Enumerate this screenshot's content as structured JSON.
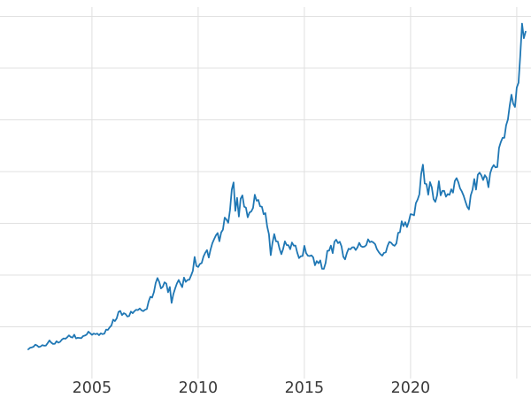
{
  "chart_data": {
    "type": "line",
    "title": "",
    "xlabel": "",
    "ylabel": "",
    "grid": true,
    "legend": "none",
    "background": "#ffffff",
    "grid_color": "#e0e0e0",
    "tick_label_color": "#3a3a3a",
    "xlim": [
      2000.67,
      2025.67
    ],
    "ylim": [
      0,
      3590
    ],
    "x_ticks": [
      {
        "value": 2005,
        "label": "2005"
      },
      {
        "value": 2010,
        "label": "2010"
      },
      {
        "value": 2015,
        "label": "2015"
      },
      {
        "value": 2020,
        "label": "2020"
      },
      {
        "value": 2025,
        "label": ""
      }
    ],
    "y_gridlines": [
      500,
      1000,
      1500,
      2000,
      2500,
      3000,
      3500
    ],
    "series": [
      {
        "name": "",
        "color": "#1f77b4",
        "line_width": 1.8,
        "start_year": 2002,
        "interval_months": 1,
        "values": [
          282,
          297,
          301,
          308,
          327,
          319,
          304,
          310,
          323,
          317,
          319,
          343,
          368,
          347,
          334,
          336,
          361,
          346,
          355,
          376,
          388,
          385,
          398,
          417,
          402,
          396,
          424,
          388,
          394,
          392,
          391,
          410,
          415,
          425,
          453,
          438,
          422,
          435,
          428,
          435,
          419,
          437,
          429,
          433,
          473,
          470,
          495,
          513,
          569,
          556,
          582,
          644,
          653,
          613,
          632,
          623,
          599,
          604,
          647,
          632,
          651,
          665,
          662,
          677,
          659,
          651,
          665,
          672,
          743,
          790,
          783,
          834,
          923,
          971,
          933,
          871,
          886,
          930,
          918,
          833,
          885,
          731,
          816,
          870,
          919,
          952,
          916,
          883,
          975,
          934,
          953,
          955,
          996,
          1040,
          1175,
          1088,
          1078,
          1108,
          1116,
          1179,
          1215,
          1241,
          1169,
          1246,
          1307,
          1346,
          1383,
          1406,
          1327,
          1411,
          1439,
          1556,
          1536,
          1505,
          1628,
          1826,
          1895,
          1620,
          1746,
          1566,
          1738,
          1770,
          1662,
          1651,
          1558,
          1604,
          1615,
          1648,
          1776,
          1719,
          1726,
          1664,
          1661,
          1588,
          1598,
          1469,
          1394,
          1192,
          1313,
          1396,
          1326,
          1324,
          1253,
          1202,
          1251,
          1326,
          1291,
          1288,
          1250,
          1315,
          1285,
          1285,
          1216,
          1164,
          1182,
          1184,
          1283,
          1213,
          1187,
          1184,
          1191,
          1171,
          1095,
          1135,
          1114,
          1142,
          1061,
          1060,
          1116,
          1234,
          1237,
          1285,
          1212,
          1322,
          1342,
          1309,
          1322,
          1277,
          1178,
          1152,
          1212,
          1255,
          1249,
          1268,
          1269,
          1242,
          1267,
          1311,
          1280,
          1271,
          1275,
          1291,
          1345,
          1318,
          1325,
          1315,
          1298,
          1250,
          1223,
          1202,
          1187,
          1215,
          1220,
          1281,
          1321,
          1313,
          1292,
          1283,
          1306,
          1409,
          1414,
          1520,
          1472,
          1511,
          1464,
          1517,
          1589,
          1586,
          1577,
          1694,
          1730,
          1781,
          1976,
          2067,
          1886,
          1879,
          1777,
          1898,
          1848,
          1734,
          1708,
          1769,
          1907,
          1770,
          1814,
          1814,
          1757,
          1783,
          1775,
          1829,
          1797,
          1909,
          1937,
          1897,
          1837,
          1807,
          1766,
          1711,
          1661,
          1634,
          1769,
          1824,
          1928,
          1827,
          1969,
          1990,
          1963,
          1919,
          1965,
          1940,
          1849,
          1984,
          2036,
          2063,
          2040,
          2044,
          2230,
          2286,
          2327,
          2327,
          2448,
          2503,
          2635,
          2744,
          2657,
          2625,
          2812,
          2858,
          3124,
          3430,
          3289,
          3352
        ]
      }
    ]
  }
}
